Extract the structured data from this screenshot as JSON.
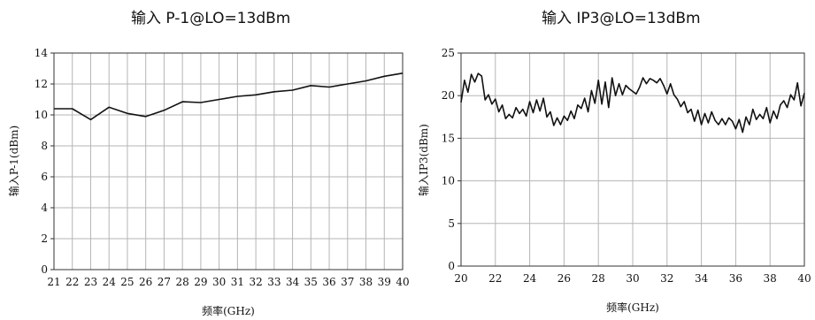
{
  "chart_data": [
    {
      "type": "line",
      "title": "输入 P-1@LO=13dBm",
      "xlabel": "频率(GHz)",
      "ylabel": "输入P-1(dBm)",
      "xlim": [
        21,
        40
      ],
      "ylim": [
        0,
        14
      ],
      "x_ticks": [
        21,
        22,
        23,
        24,
        25,
        26,
        27,
        28,
        29,
        30,
        31,
        32,
        33,
        34,
        35,
        36,
        37,
        38,
        39,
        40
      ],
      "y_ticks": [
        0,
        2,
        4,
        6,
        8,
        10,
        12,
        14
      ],
      "grid": true,
      "legend": "none",
      "x": [
        21,
        22,
        23,
        24,
        25,
        26,
        27,
        28,
        29,
        30,
        31,
        32,
        33,
        34,
        35,
        36,
        37,
        38,
        39,
        40
      ],
      "values": [
        10.4,
        10.4,
        9.7,
        10.5,
        10.1,
        9.9,
        10.3,
        10.85,
        10.8,
        11.0,
        11.2,
        11.3,
        11.5,
        11.6,
        11.9,
        11.8,
        12.0,
        12.2,
        12.5,
        12.7
      ]
    },
    {
      "type": "line",
      "title": "输入 IP3@LO=13dBm",
      "xlabel": "频率(GHz)",
      "ylabel": "输入IP3(dBm)",
      "xlim": [
        20,
        40
      ],
      "ylim": [
        0,
        25
      ],
      "x_ticks": [
        20,
        22,
        24,
        26,
        28,
        30,
        32,
        34,
        36,
        38,
        40
      ],
      "y_ticks": [
        0,
        5,
        10,
        15,
        20,
        25
      ],
      "grid": true,
      "legend": "none",
      "x": [
        20.0,
        20.2,
        20.4,
        20.6,
        20.8,
        21.0,
        21.2,
        21.4,
        21.6,
        21.8,
        22.0,
        22.2,
        22.4,
        22.6,
        22.8,
        23.0,
        23.2,
        23.4,
        23.6,
        23.8,
        24.0,
        24.2,
        24.4,
        24.6,
        24.8,
        25.0,
        25.2,
        25.4,
        25.6,
        25.8,
        26.0,
        26.2,
        26.4,
        26.6,
        26.8,
        27.0,
        27.2,
        27.4,
        27.6,
        27.8,
        28.0,
        28.2,
        28.4,
        28.6,
        28.8,
        29.0,
        29.2,
        29.4,
        29.6,
        29.8,
        30.0,
        30.2,
        30.4,
        30.6,
        30.8,
        31.0,
        31.2,
        31.4,
        31.6,
        31.8,
        32.0,
        32.2,
        32.4,
        32.6,
        32.8,
        33.0,
        33.2,
        33.4,
        33.6,
        33.8,
        34.0,
        34.2,
        34.4,
        34.6,
        34.8,
        35.0,
        35.2,
        35.4,
        35.6,
        35.8,
        36.0,
        36.2,
        36.4,
        36.6,
        36.8,
        37.0,
        37.2,
        37.4,
        37.6,
        37.8,
        38.0,
        38.2,
        38.4,
        38.6,
        38.8,
        39.0,
        39.2,
        39.4,
        39.6,
        39.8,
        40.0
      ],
      "values": [
        19.2,
        21.8,
        20.4,
        22.5,
        21.6,
        22.6,
        22.3,
        19.5,
        20.1,
        19.0,
        19.6,
        18.1,
        18.9,
        17.3,
        17.8,
        17.4,
        18.6,
        17.9,
        18.4,
        17.6,
        19.3,
        18.0,
        19.5,
        18.2,
        19.7,
        17.5,
        18.1,
        16.5,
        17.4,
        16.6,
        17.6,
        17.1,
        18.2,
        17.3,
        18.9,
        18.5,
        19.7,
        18.1,
        20.6,
        19.1,
        21.8,
        19.0,
        21.6,
        18.6,
        22.1,
        20.0,
        21.4,
        20.1,
        21.2,
        20.8,
        20.5,
        20.2,
        21.0,
        22.1,
        21.4,
        22.0,
        21.8,
        21.5,
        22.0,
        21.2,
        20.2,
        21.4,
        20.1,
        19.6,
        18.7,
        19.3,
        18.0,
        18.4,
        17.0,
        18.3,
        16.6,
        17.9,
        16.8,
        18.1,
        17.1,
        16.6,
        17.3,
        16.6,
        17.4,
        17.0,
        16.1,
        17.2,
        15.7,
        17.5,
        16.6,
        18.4,
        17.2,
        17.8,
        17.3,
        18.6,
        16.8,
        18.2,
        17.3,
        18.9,
        19.4,
        18.6,
        20.1,
        19.5,
        21.5,
        18.8,
        20.3
      ]
    }
  ]
}
